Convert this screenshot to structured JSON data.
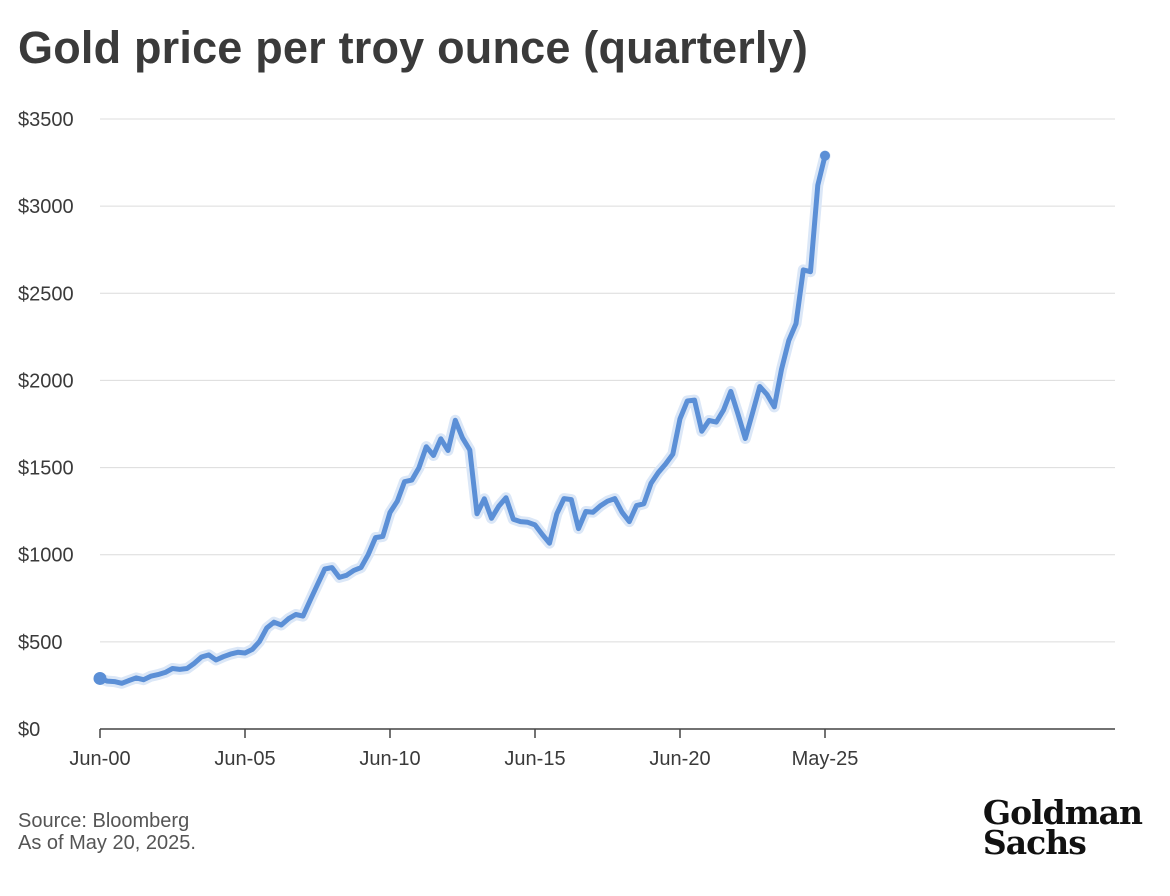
{
  "title": "Gold price per troy ounce (quarterly)",
  "source": {
    "line1": "Source: Bloomberg",
    "line2": "As of May 20, 2025."
  },
  "logo": {
    "line1": "Goldman",
    "line2": "Sachs"
  },
  "colors": {
    "line": "#5b8fd6",
    "grid": "#dcdcdc",
    "axis": "#444444"
  },
  "chart_data": {
    "type": "line",
    "title": "Gold price per troy ounce (quarterly)",
    "xlabel": "",
    "ylabel": "",
    "x_tick_labels": [
      {
        "label": "Jun-00",
        "x": 2000.0
      },
      {
        "label": "Jun-05",
        "x": 2005.0
      },
      {
        "label": "Jun-10",
        "x": 2010.0
      },
      {
        "label": "Jun-15",
        "x": 2015.0
      },
      {
        "label": "Jun-20",
        "x": 2020.0
      },
      {
        "label": "May-25",
        "x": 2025.0
      }
    ],
    "xlim": [
      2000.0,
      2035.0
    ],
    "y_tick_labels": [
      "$0",
      "$500",
      "$1000",
      "$1500",
      "$2000",
      "$2500",
      "$3000",
      "$3500"
    ],
    "y_ticks": [
      0,
      500,
      1000,
      1500,
      2000,
      2500,
      3000,
      3500
    ],
    "ylim": [
      0,
      3500
    ],
    "grid": true,
    "markers": "start and end points",
    "series": [
      {
        "x": [
          2000.0,
          2000.25,
          2000.5,
          2000.75,
          2001.0,
          2001.25,
          2001.5,
          2001.75,
          2002.0,
          2002.25,
          2002.5,
          2002.75,
          2003.0,
          2003.25,
          2003.5,
          2003.75,
          2004.0,
          2004.25,
          2004.5,
          2004.75,
          2005.0,
          2005.25,
          2005.5,
          2005.75,
          2006.0,
          2006.25,
          2006.5,
          2006.75,
          2007.0,
          2007.25,
          2007.5,
          2007.75,
          2008.0,
          2008.25,
          2008.5,
          2008.75,
          2009.0,
          2009.25,
          2009.5,
          2009.75,
          2010.0,
          2010.25,
          2010.5,
          2010.75,
          2011.0,
          2011.25,
          2011.5,
          2011.75,
          2012.0,
          2012.25,
          2012.5,
          2012.75,
          2013.0,
          2013.25,
          2013.5,
          2013.75,
          2014.0,
          2014.25,
          2014.5,
          2014.75,
          2015.0,
          2015.25,
          2015.5,
          2015.75,
          2016.0,
          2016.25,
          2016.5,
          2016.75,
          2017.0,
          2017.25,
          2017.5,
          2017.75,
          2018.0,
          2018.25,
          2018.5,
          2018.75,
          2019.0,
          2019.25,
          2019.5,
          2019.75,
          2020.0,
          2020.25,
          2020.5,
          2020.75,
          2021.0,
          2021.25,
          2021.5,
          2021.75,
          2022.0,
          2022.25,
          2022.5,
          2022.75,
          2023.0,
          2023.25,
          2023.5,
          2023.75,
          2024.0,
          2024.25,
          2024.5,
          2024.75,
          2025.0
        ],
        "y": [
          290,
          275,
          272,
          262,
          278,
          293,
          283,
          303,
          312,
          325,
          347,
          342,
          347,
          377,
          413,
          425,
          396,
          415,
          430,
          440,
          436,
          457,
          502,
          580,
          613,
          597,
          633,
          657,
          648,
          740,
          829,
          918,
          926,
          870,
          882,
          910,
          926,
          1002,
          1098,
          1105,
          1242,
          1307,
          1419,
          1428,
          1500,
          1620,
          1569,
          1665,
          1598,
          1771,
          1670,
          1601,
          1235,
          1321,
          1209,
          1279,
          1327,
          1204,
          1190,
          1186,
          1171,
          1116,
          1066,
          1235,
          1322,
          1316,
          1150,
          1248,
          1244,
          1280,
          1307,
          1322,
          1244,
          1190,
          1282,
          1292,
          1409,
          1472,
          1520,
          1577,
          1780,
          1882,
          1887,
          1708,
          1770,
          1761,
          1830,
          1937,
          1807,
          1667,
          1813,
          1965,
          1919,
          1848,
          2063,
          2229,
          2326,
          2634,
          2624,
          3120,
          3289
        ]
      }
    ]
  }
}
